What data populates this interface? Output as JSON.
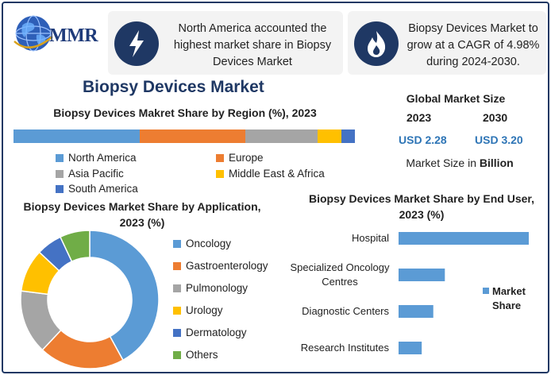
{
  "header": {
    "logo_text": "MMR",
    "card_1_text": "North America accounted the highest market share in Biopsy Devices Market",
    "card_2_text": "Biopsy Devices Market to grow at a CAGR of 4.98% during 2024-2030.",
    "card_1_icon": "lightning-bolt-icon",
    "card_2_icon": "flame-icon"
  },
  "main_title": "Biopsy Devices Market",
  "global_market": {
    "title": "Global Market Size",
    "year_1": "2023",
    "year_2": "2030",
    "value_1": "USD 2.28",
    "value_2": "USD 3.20",
    "note_prefix": "Market Size in ",
    "note_unit": "Billion"
  },
  "colors": {
    "navy": "#1f3864",
    "blue": "#5b9bd5",
    "orange": "#ed7d31",
    "gray": "#a5a5a5",
    "yellow": "#ffc000",
    "dark_blue": "#4472c4",
    "green": "#70ad47"
  },
  "chart_data": [
    {
      "type": "bar",
      "orientation": "horizontal-stacked",
      "title": "Biopsy Devices Makret Share by Region (%), 2023",
      "series": [
        {
          "name": "North America",
          "values": [
            37
          ],
          "color": "#5b9bd5"
        },
        {
          "name": "Europe",
          "values": [
            31
          ],
          "color": "#ed7d31"
        },
        {
          "name": "Asia Pacific",
          "values": [
            21
          ],
          "color": "#a5a5a5"
        },
        {
          "name": "Middle East & Africa",
          "values": [
            7
          ],
          "color": "#ffc000"
        },
        {
          "name": "South America",
          "values": [
            4
          ],
          "color": "#4472c4"
        }
      ],
      "legend": "bottom"
    },
    {
      "type": "pie",
      "style": "donut",
      "title": "Biopsy Devices Market Share by Application, 2023 (%)",
      "labels": [
        "Oncology",
        "Gastroenterology",
        "Pulmonology",
        "Urology",
        "Dermatology",
        "Others"
      ],
      "values": [
        42,
        20,
        15,
        10,
        6,
        7
      ],
      "colors": [
        "#5b9bd5",
        "#ed7d31",
        "#a5a5a5",
        "#ffc000",
        "#4472c4",
        "#70ad47"
      ],
      "legend": "right"
    },
    {
      "type": "bar",
      "orientation": "horizontal",
      "title": "Biopsy Devices Market Share by End User, 2023 (%)",
      "categories": [
        "Hospital",
        "Specialized Oncology Centres",
        "Diagnostic Centers",
        "Research Institutes"
      ],
      "category_lines": [
        [
          "Hospital"
        ],
        [
          "Specialized Oncology",
          "Centres"
        ],
        [
          "Diagnostic Centers"
        ],
        [
          "Research Institutes"
        ]
      ],
      "series": [
        {
          "name": "Market Share",
          "values": [
            45,
            16,
            12,
            8
          ],
          "color": "#5b9bd5"
        }
      ],
      "xlim": [
        0,
        45
      ],
      "legend": "right"
    }
  ]
}
